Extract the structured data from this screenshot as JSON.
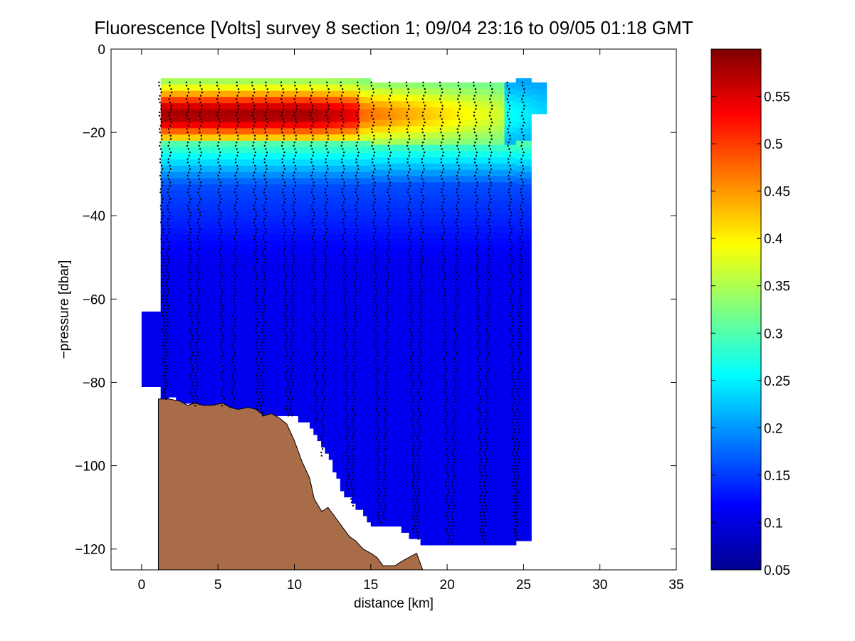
{
  "chart_data": {
    "type": "heatmap",
    "title": "Fluorescence [Volts] survey 8 section 1; 09/04 23:16 to 09/05 01:18 GMT",
    "xlabel": "distance [km]",
    "ylabel": "−pressure [dbar]",
    "xlim": [
      -2,
      35
    ],
    "ylim": [
      -125,
      0
    ],
    "xticks": [
      0,
      5,
      10,
      15,
      20,
      25,
      30,
      35
    ],
    "yticks": [
      0,
      -20,
      -40,
      -60,
      -80,
      -100,
      -120
    ],
    "xtick_labels": [
      "0",
      "5",
      "10",
      "15",
      "20",
      "25",
      "30",
      "35"
    ],
    "ytick_labels": [
      "0",
      "−20",
      "−40",
      "−60",
      "−80",
      "−100",
      "−120"
    ],
    "colorbar": {
      "range": [
        0.05,
        0.6
      ],
      "ticks": [
        0.05,
        0.1,
        0.15,
        0.2,
        0.25,
        0.3,
        0.35,
        0.4,
        0.45,
        0.5,
        0.55
      ],
      "tick_labels": [
        "0.05",
        "0.1",
        "0.15",
        "0.2",
        "0.25",
        "0.3",
        "0.35",
        "0.4",
        "0.45",
        "0.5",
        "0.55"
      ],
      "colormap": "jet"
    },
    "profiles_x_km": [
      1.2,
      1.9,
      3.0,
      3.9,
      5.0,
      6.3,
      7.3,
      8.2,
      9.2,
      10.1,
      11.1,
      12.2,
      13.1,
      14.2,
      15.1,
      16.3,
      17.4,
      18.5,
      19.6,
      20.8,
      21.8,
      22.9,
      24.0,
      25.0
    ],
    "profiles_bottom_dbar": [
      -84,
      -83,
      -85,
      -86,
      -86,
      -86,
      -87,
      -88,
      -88,
      -88,
      -90,
      -98,
      -106,
      -110,
      -114,
      -113,
      -116,
      -118,
      -119,
      -119,
      -118,
      -119,
      -118,
      -118
    ],
    "bathymetry": {
      "x_km": [
        1.1,
        1.8,
        2.5,
        3.0,
        3.5,
        4.0,
        4.6,
        5.3,
        5.8,
        6.3,
        7.0,
        7.5,
        8.0,
        8.5,
        9.0,
        9.5,
        10.0,
        10.5,
        11.0,
        11.3,
        11.8,
        12.2,
        12.8,
        13.2,
        13.6,
        14.0,
        14.5,
        15.0,
        15.4,
        15.8,
        16.2,
        16.6,
        17.0,
        17.5,
        18.0,
        18.4
      ],
      "depth_dbar": [
        -84,
        -84,
        -84.5,
        -85.5,
        -85,
        -85.5,
        -85.5,
        -85,
        -86,
        -86.5,
        -86,
        -86.5,
        -88,
        -87.5,
        -88.5,
        -90,
        -94,
        -99,
        -103,
        -108,
        -111,
        -110,
        -113,
        -115,
        -117,
        -118,
        -120,
        -121,
        -122,
        -124,
        -124,
        -124,
        -123,
        -122,
        -121,
        -125
      ]
    },
    "colors": {
      "seafloor": "#a86c48",
      "profile_dots": "#000000"
    }
  }
}
